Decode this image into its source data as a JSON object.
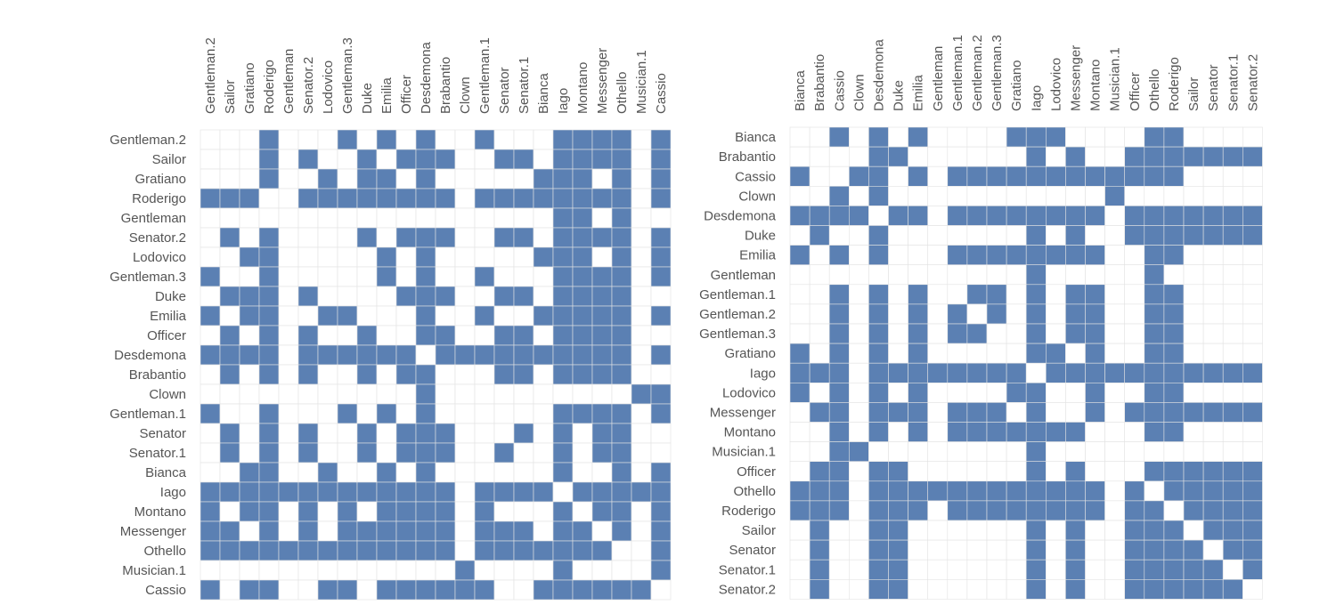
{
  "colors": {
    "filled": "#5b80b3",
    "empty": "#ffffff",
    "grid": "#e3e3e3",
    "label": "#555555"
  },
  "chart_data": [
    {
      "type": "heatmap",
      "encoding": "binary adjacency matrix; 1 = filled cell",
      "rows": [
        "Gentleman.2",
        "Sailor",
        "Gratiano",
        "Roderigo",
        "Gentleman",
        "Senator.2",
        "Lodovico",
        "Gentleman.3",
        "Duke",
        "Emilia",
        "Officer",
        "Desdemona",
        "Brabantio",
        "Clown",
        "Gentleman.1",
        "Senator",
        "Senator.1",
        "Bianca",
        "Iago",
        "Montano",
        "Messenger",
        "Othello",
        "Musician.1",
        "Cassio"
      ],
      "columns": [
        "Gentleman.2",
        "Sailor",
        "Gratiano",
        "Roderigo",
        "Gentleman",
        "Senator.2",
        "Lodovico",
        "Gentleman.3",
        "Duke",
        "Emilia",
        "Officer",
        "Desdemona",
        "Brabantio",
        "Clown",
        "Gentleman.1",
        "Senator",
        "Senator.1",
        "Bianca",
        "Iago",
        "Montano",
        "Messenger",
        "Othello",
        "Musician.1",
        "Cassio"
      ],
      "values": [
        [
          0,
          0,
          0,
          1,
          0,
          0,
          0,
          1,
          0,
          1,
          0,
          1,
          0,
          0,
          1,
          0,
          0,
          0,
          1,
          1,
          1,
          1,
          0,
          1
        ],
        [
          0,
          0,
          0,
          1,
          0,
          1,
          0,
          0,
          1,
          0,
          1,
          1,
          1,
          0,
          0,
          1,
          1,
          0,
          1,
          1,
          1,
          1,
          0,
          1
        ],
        [
          0,
          0,
          0,
          1,
          0,
          0,
          1,
          0,
          1,
          1,
          0,
          1,
          0,
          0,
          0,
          0,
          0,
          1,
          1,
          1,
          0,
          1,
          0,
          1
        ],
        [
          1,
          1,
          1,
          0,
          0,
          1,
          1,
          1,
          1,
          1,
          1,
          1,
          1,
          0,
          1,
          1,
          1,
          1,
          1,
          1,
          1,
          1,
          0,
          1
        ],
        [
          0,
          0,
          0,
          0,
          0,
          0,
          0,
          0,
          0,
          0,
          0,
          0,
          0,
          0,
          0,
          0,
          0,
          0,
          1,
          1,
          0,
          1,
          0,
          0
        ],
        [
          0,
          1,
          0,
          1,
          0,
          0,
          0,
          0,
          1,
          0,
          1,
          1,
          1,
          0,
          0,
          1,
          1,
          0,
          1,
          1,
          1,
          1,
          0,
          1
        ],
        [
          0,
          0,
          1,
          1,
          0,
          0,
          0,
          0,
          0,
          1,
          0,
          1,
          0,
          0,
          0,
          0,
          0,
          1,
          1,
          1,
          0,
          1,
          0,
          1
        ],
        [
          1,
          0,
          0,
          1,
          0,
          0,
          0,
          0,
          0,
          1,
          0,
          1,
          0,
          0,
          1,
          0,
          0,
          0,
          1,
          1,
          1,
          1,
          0,
          1
        ],
        [
          0,
          1,
          1,
          1,
          0,
          1,
          0,
          0,
          0,
          0,
          1,
          1,
          1,
          0,
          0,
          1,
          1,
          0,
          1,
          1,
          1,
          1,
          0,
          0
        ],
        [
          1,
          0,
          1,
          1,
          0,
          0,
          1,
          1,
          0,
          0,
          0,
          1,
          0,
          0,
          1,
          0,
          0,
          1,
          1,
          1,
          1,
          1,
          0,
          1
        ],
        [
          0,
          1,
          0,
          1,
          0,
          1,
          0,
          0,
          1,
          0,
          0,
          1,
          1,
          0,
          0,
          1,
          1,
          0,
          1,
          1,
          1,
          1,
          0,
          0
        ],
        [
          1,
          1,
          1,
          1,
          0,
          1,
          1,
          1,
          1,
          1,
          1,
          0,
          1,
          1,
          1,
          1,
          1,
          1,
          1,
          1,
          1,
          1,
          0,
          1
        ],
        [
          0,
          1,
          0,
          1,
          0,
          1,
          0,
          0,
          1,
          0,
          1,
          1,
          0,
          0,
          0,
          1,
          1,
          0,
          1,
          1,
          1,
          1,
          0,
          0
        ],
        [
          0,
          0,
          0,
          0,
          0,
          0,
          0,
          0,
          0,
          0,
          0,
          1,
          0,
          0,
          0,
          0,
          0,
          0,
          0,
          0,
          0,
          0,
          1,
          1
        ],
        [
          1,
          0,
          0,
          1,
          0,
          0,
          0,
          1,
          0,
          1,
          0,
          1,
          0,
          0,
          0,
          0,
          0,
          0,
          1,
          1,
          1,
          1,
          0,
          1
        ],
        [
          0,
          1,
          0,
          1,
          0,
          1,
          0,
          0,
          1,
          0,
          1,
          1,
          1,
          0,
          0,
          0,
          1,
          0,
          1,
          0,
          1,
          1,
          0,
          0
        ],
        [
          0,
          1,
          0,
          1,
          0,
          1,
          0,
          0,
          1,
          0,
          1,
          1,
          1,
          0,
          0,
          1,
          0,
          0,
          1,
          0,
          1,
          1,
          0,
          0
        ],
        [
          0,
          0,
          1,
          1,
          0,
          0,
          1,
          0,
          0,
          1,
          0,
          1,
          0,
          0,
          0,
          0,
          0,
          0,
          1,
          0,
          0,
          1,
          0,
          1
        ],
        [
          1,
          1,
          1,
          1,
          1,
          1,
          1,
          1,
          1,
          1,
          1,
          1,
          1,
          0,
          1,
          1,
          1,
          1,
          0,
          1,
          1,
          1,
          1,
          1
        ],
        [
          1,
          0,
          1,
          1,
          0,
          1,
          0,
          1,
          0,
          1,
          1,
          1,
          1,
          0,
          1,
          0,
          0,
          0,
          1,
          0,
          1,
          1,
          0,
          1
        ],
        [
          1,
          1,
          0,
          1,
          0,
          1,
          0,
          1,
          1,
          1,
          1,
          1,
          1,
          0,
          1,
          1,
          1,
          0,
          1,
          1,
          0,
          1,
          0,
          1
        ],
        [
          1,
          1,
          1,
          1,
          1,
          1,
          1,
          1,
          1,
          1,
          1,
          1,
          1,
          0,
          1,
          1,
          1,
          1,
          1,
          1,
          1,
          0,
          0,
          1
        ],
        [
          0,
          0,
          0,
          0,
          0,
          0,
          0,
          0,
          0,
          0,
          0,
          0,
          0,
          1,
          0,
          0,
          0,
          0,
          1,
          0,
          0,
          0,
          0,
          1
        ],
        [
          1,
          0,
          1,
          1,
          0,
          0,
          1,
          1,
          0,
          1,
          1,
          1,
          1,
          1,
          1,
          0,
          0,
          1,
          1,
          1,
          1,
          1,
          1,
          0
        ]
      ]
    },
    {
      "type": "heatmap",
      "encoding": "binary adjacency matrix; 1 = filled cell",
      "rows": [
        "Bianca",
        "Brabantio",
        "Cassio",
        "Clown",
        "Desdemona",
        "Duke",
        "Emilia",
        "Gentleman",
        "Gentleman.1",
        "Gentleman.2",
        "Gentleman.3",
        "Gratiano",
        "Iago",
        "Lodovico",
        "Messenger",
        "Montano",
        "Musician.1",
        "Officer",
        "Othello",
        "Roderigo",
        "Sailor",
        "Senator",
        "Senator.1",
        "Senator.2"
      ],
      "columns": [
        "Bianca",
        "Brabantio",
        "Cassio",
        "Clown",
        "Desdemona",
        "Duke",
        "Emilia",
        "Gentleman",
        "Gentleman.1",
        "Gentleman.2",
        "Gentleman.3",
        "Gratiano",
        "Iago",
        "Lodovico",
        "Messenger",
        "Montano",
        "Musician.1",
        "Officer",
        "Othello",
        "Roderigo",
        "Sailor",
        "Senator",
        "Senator.1",
        "Senator.2"
      ],
      "values": [
        [
          0,
          0,
          1,
          0,
          1,
          0,
          1,
          0,
          0,
          0,
          0,
          1,
          1,
          1,
          0,
          0,
          0,
          0,
          1,
          1,
          0,
          0,
          0,
          0
        ],
        [
          0,
          0,
          0,
          0,
          1,
          1,
          0,
          0,
          0,
          0,
          0,
          0,
          1,
          0,
          1,
          0,
          0,
          1,
          1,
          1,
          1,
          1,
          1,
          1
        ],
        [
          1,
          0,
          0,
          1,
          1,
          0,
          1,
          0,
          1,
          1,
          1,
          1,
          1,
          1,
          1,
          1,
          1,
          1,
          1,
          1,
          0,
          0,
          0,
          0
        ],
        [
          0,
          0,
          1,
          0,
          1,
          0,
          0,
          0,
          0,
          0,
          0,
          0,
          0,
          0,
          0,
          0,
          1,
          0,
          0,
          0,
          0,
          0,
          0,
          0
        ],
        [
          1,
          1,
          1,
          1,
          0,
          1,
          1,
          0,
          1,
          1,
          1,
          1,
          1,
          1,
          1,
          1,
          0,
          1,
          1,
          1,
          1,
          1,
          1,
          1
        ],
        [
          0,
          1,
          0,
          0,
          1,
          0,
          0,
          0,
          0,
          0,
          0,
          0,
          1,
          0,
          1,
          0,
          0,
          1,
          1,
          1,
          1,
          1,
          1,
          1
        ],
        [
          1,
          0,
          1,
          0,
          1,
          0,
          0,
          0,
          1,
          1,
          1,
          1,
          1,
          1,
          1,
          1,
          0,
          0,
          1,
          1,
          0,
          0,
          0,
          0
        ],
        [
          0,
          0,
          0,
          0,
          0,
          0,
          0,
          0,
          0,
          0,
          0,
          0,
          1,
          0,
          0,
          0,
          0,
          0,
          1,
          0,
          0,
          0,
          0,
          0
        ],
        [
          0,
          0,
          1,
          0,
          1,
          0,
          1,
          0,
          0,
          1,
          1,
          0,
          1,
          0,
          1,
          1,
          0,
          0,
          1,
          1,
          0,
          0,
          0,
          0
        ],
        [
          0,
          0,
          1,
          0,
          1,
          0,
          1,
          0,
          1,
          0,
          1,
          0,
          1,
          0,
          1,
          1,
          0,
          0,
          1,
          1,
          0,
          0,
          0,
          0
        ],
        [
          0,
          0,
          1,
          0,
          1,
          0,
          1,
          0,
          1,
          1,
          0,
          0,
          1,
          0,
          1,
          1,
          0,
          0,
          1,
          1,
          0,
          0,
          0,
          0
        ],
        [
          1,
          0,
          1,
          0,
          1,
          0,
          1,
          0,
          0,
          0,
          0,
          0,
          1,
          1,
          0,
          1,
          0,
          0,
          1,
          1,
          0,
          0,
          0,
          0
        ],
        [
          1,
          1,
          1,
          0,
          1,
          1,
          1,
          1,
          1,
          1,
          1,
          1,
          0,
          1,
          1,
          1,
          1,
          1,
          1,
          1,
          1,
          1,
          1,
          1
        ],
        [
          1,
          0,
          1,
          0,
          1,
          0,
          1,
          0,
          0,
          0,
          0,
          1,
          1,
          0,
          0,
          1,
          0,
          0,
          1,
          1,
          0,
          0,
          0,
          0
        ],
        [
          0,
          1,
          1,
          0,
          1,
          1,
          1,
          0,
          1,
          1,
          1,
          0,
          1,
          0,
          0,
          1,
          0,
          1,
          1,
          1,
          1,
          1,
          1,
          1
        ],
        [
          0,
          0,
          1,
          0,
          1,
          0,
          1,
          0,
          1,
          1,
          1,
          1,
          1,
          1,
          1,
          0,
          0,
          0,
          1,
          1,
          0,
          0,
          0,
          0
        ],
        [
          0,
          0,
          1,
          1,
          0,
          0,
          0,
          0,
          0,
          0,
          0,
          0,
          1,
          0,
          0,
          0,
          0,
          0,
          0,
          0,
          0,
          0,
          0,
          0
        ],
        [
          0,
          1,
          1,
          0,
          1,
          1,
          0,
          0,
          0,
          0,
          0,
          0,
          1,
          0,
          1,
          0,
          0,
          0,
          1,
          1,
          1,
          1,
          1,
          1
        ],
        [
          1,
          1,
          1,
          0,
          1,
          1,
          1,
          1,
          1,
          1,
          1,
          1,
          1,
          1,
          1,
          1,
          0,
          1,
          0,
          1,
          1,
          1,
          1,
          1
        ],
        [
          1,
          1,
          1,
          0,
          1,
          1,
          1,
          0,
          1,
          1,
          1,
          1,
          1,
          1,
          1,
          1,
          0,
          1,
          1,
          0,
          1,
          1,
          1,
          1
        ],
        [
          0,
          1,
          0,
          0,
          1,
          1,
          0,
          0,
          0,
          0,
          0,
          0,
          1,
          0,
          1,
          0,
          0,
          1,
          1,
          1,
          0,
          1,
          1,
          1
        ],
        [
          0,
          1,
          0,
          0,
          1,
          1,
          0,
          0,
          0,
          0,
          0,
          0,
          1,
          0,
          1,
          0,
          0,
          1,
          1,
          1,
          1,
          0,
          1,
          1
        ],
        [
          0,
          1,
          0,
          0,
          1,
          1,
          0,
          0,
          0,
          0,
          0,
          0,
          1,
          0,
          1,
          0,
          0,
          1,
          1,
          1,
          1,
          1,
          0,
          1
        ],
        [
          0,
          1,
          0,
          0,
          1,
          1,
          0,
          0,
          0,
          0,
          0,
          0,
          1,
          0,
          1,
          0,
          0,
          1,
          1,
          1,
          1,
          1,
          1,
          0
        ]
      ]
    }
  ]
}
